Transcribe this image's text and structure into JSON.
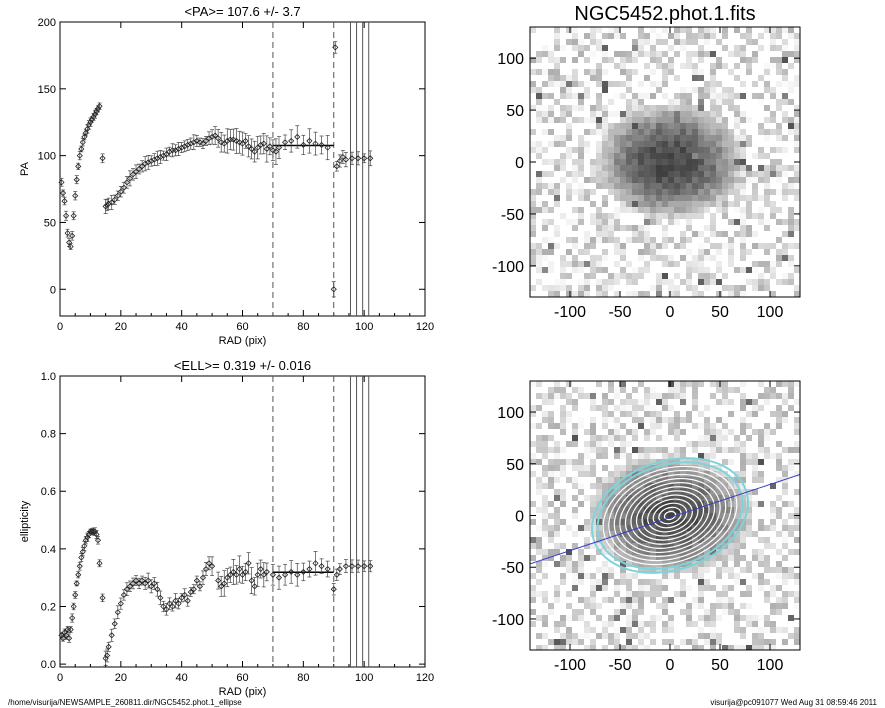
{
  "footer": {
    "path": "/home/visurija/NEWSAMPLE_260811.dir/NGC5452.phot.1_ellipse",
    "stamp": "visurija@pc091077  Wed Aug 31 08:59:46 2011"
  },
  "colors": {
    "points": "#444444",
    "axis": "#000000",
    "ellipse_cyan": "#7fd3db",
    "major_axis_line": "#3a3acc"
  },
  "chart_data": [
    {
      "type": "scatter",
      "title": "<PA>= 107.6 +/-   3.7",
      "xlabel": "RAD (pix)",
      "ylabel": "PA",
      "xlim": [
        0,
        120
      ],
      "ylim": [
        -20,
        200
      ],
      "xticks": [
        "0",
        "20",
        "40",
        "60",
        "80",
        "100",
        "120"
      ],
      "yticks": [
        "0",
        "50",
        "100",
        "150",
        "200"
      ],
      "ytick_values": [
        0,
        50,
        100,
        150,
        200
      ],
      "dashed_vlines": [
        70,
        90
      ],
      "solid_vlines": [
        95.5,
        97.5,
        99.5,
        101.5
      ],
      "mean_segment": {
        "x": [
          70,
          90
        ],
        "y": 107.6
      },
      "points": [
        [
          0.5,
          80
        ],
        [
          1,
          72
        ],
        [
          1.5,
          66
        ],
        [
          2,
          55
        ],
        [
          2.5,
          42
        ],
        [
          3,
          35
        ],
        [
          3.5,
          32
        ],
        [
          4,
          40
        ],
        [
          4.5,
          55
        ],
        [
          5,
          70
        ],
        [
          5.5,
          82
        ],
        [
          6,
          92
        ],
        [
          6.5,
          100
        ],
        [
          7,
          105
        ],
        [
          7.5,
          110
        ],
        [
          8,
          114
        ],
        [
          8.5,
          117
        ],
        [
          9,
          120
        ],
        [
          9.5,
          123
        ],
        [
          10,
          125
        ],
        [
          10.5,
          127
        ],
        [
          11,
          129
        ],
        [
          11.5,
          131
        ],
        [
          12,
          133
        ],
        [
          12.5,
          135
        ],
        [
          13,
          137
        ],
        [
          14,
          98
        ],
        [
          15,
          62
        ],
        [
          15.5,
          63
        ],
        [
          16,
          64
        ],
        [
          17,
          65
        ],
        [
          18,
          67
        ],
        [
          19,
          70
        ],
        [
          20,
          73
        ],
        [
          21,
          76
        ],
        [
          22,
          80
        ],
        [
          23,
          83
        ],
        [
          24,
          86
        ],
        [
          25,
          88
        ],
        [
          26,
          90
        ],
        [
          27,
          92
        ],
        [
          28,
          94
        ],
        [
          29,
          95
        ],
        [
          30,
          96
        ],
        [
          31,
          97
        ],
        [
          32,
          98
        ],
        [
          33,
          99
        ],
        [
          34,
          100
        ],
        [
          35,
          101
        ],
        [
          36,
          103
        ],
        [
          37,
          104
        ],
        [
          38,
          104
        ],
        [
          39,
          105
        ],
        [
          40,
          106
        ],
        [
          41,
          107
        ],
        [
          42,
          108
        ],
        [
          43,
          109
        ],
        [
          44,
          110
        ],
        [
          45,
          111
        ],
        [
          46,
          110
        ],
        [
          47,
          109
        ],
        [
          48,
          111
        ],
        [
          49,
          113
        ],
        [
          50,
          114
        ],
        [
          51,
          115
        ],
        [
          52,
          113
        ],
        [
          53,
          110
        ],
        [
          54,
          109
        ],
        [
          55,
          111
        ],
        [
          56,
          112
        ],
        [
          57,
          112
        ],
        [
          58,
          111
        ],
        [
          59,
          110
        ],
        [
          60,
          109
        ],
        [
          61,
          111
        ],
        [
          62,
          107
        ],
        [
          63,
          105
        ],
        [
          64,
          103
        ],
        [
          65,
          106
        ],
        [
          66,
          108
        ],
        [
          67,
          109
        ],
        [
          68,
          105
        ],
        [
          69,
          107
        ],
        [
          70,
          104
        ],
        [
          71,
          103
        ],
        [
          72,
          106
        ],
        [
          74,
          110
        ],
        [
          76,
          111
        ],
        [
          78,
          114
        ],
        [
          80,
          108
        ],
        [
          82,
          111
        ],
        [
          84,
          109
        ],
        [
          86,
          108
        ],
        [
          88,
          106
        ],
        [
          90,
          0
        ],
        [
          90.5,
          181
        ],
        [
          91,
          92
        ],
        [
          92,
          96
        ],
        [
          93,
          99
        ],
        [
          94,
          97
        ],
        [
          96,
          98
        ],
        [
          98,
          98
        ],
        [
          100,
          98
        ],
        [
          102,
          98
        ]
      ]
    },
    {
      "type": "scatter",
      "title": "<ELL>= 0.319 +/-  0.016",
      "xlabel": "RAD (pix)",
      "ylabel": "ellipticity",
      "xlim": [
        0,
        120
      ],
      "ylim": [
        -0.01,
        1.0
      ],
      "xticks": [
        "0",
        "20",
        "40",
        "60",
        "80",
        "100",
        "120"
      ],
      "yticks": [
        "0.0",
        "0.2",
        "0.4",
        "0.6",
        "0.8",
        "1.0"
      ],
      "ytick_values": [
        0.0,
        0.2,
        0.4,
        0.6,
        0.8,
        1.0
      ],
      "dashed_vlines": [
        70,
        90
      ],
      "solid_vlines": [
        95.5,
        97.5,
        99.5,
        101.5
      ],
      "mean_segment": {
        "x": [
          70,
          90
        ],
        "y": 0.319
      },
      "points": [
        [
          0.5,
          0.1
        ],
        [
          1,
          0.09
        ],
        [
          1.5,
          0.11
        ],
        [
          2,
          0.1
        ],
        [
          2.5,
          0.12
        ],
        [
          3,
          0.09
        ],
        [
          3.5,
          0.12
        ],
        [
          4,
          0.16
        ],
        [
          4.5,
          0.2
        ],
        [
          5,
          0.24
        ],
        [
          5.5,
          0.28
        ],
        [
          6,
          0.31
        ],
        [
          6.5,
          0.34
        ],
        [
          7,
          0.37
        ],
        [
          7.5,
          0.39
        ],
        [
          8,
          0.41
        ],
        [
          8.5,
          0.43
        ],
        [
          9,
          0.44
        ],
        [
          9.5,
          0.45
        ],
        [
          10,
          0.46
        ],
        [
          10.5,
          0.46
        ],
        [
          11,
          0.46
        ],
        [
          11.5,
          0.46
        ],
        [
          12,
          0.45
        ],
        [
          12.5,
          0.43
        ],
        [
          13,
          0.35
        ],
        [
          14,
          0.23
        ],
        [
          15,
          0.02
        ],
        [
          15.5,
          0.03
        ],
        [
          16,
          0.06
        ],
        [
          17,
          0.1
        ],
        [
          18,
          0.14
        ],
        [
          19,
          0.18
        ],
        [
          20,
          0.21
        ],
        [
          21,
          0.24
        ],
        [
          22,
          0.26
        ],
        [
          23,
          0.27
        ],
        [
          24,
          0.28
        ],
        [
          25,
          0.29
        ],
        [
          26,
          0.28
        ],
        [
          27,
          0.29
        ],
        [
          28,
          0.28
        ],
        [
          29,
          0.29
        ],
        [
          30,
          0.27
        ],
        [
          31,
          0.28
        ],
        [
          32,
          0.26
        ],
        [
          33,
          0.23
        ],
        [
          34,
          0.2
        ],
        [
          35,
          0.19
        ],
        [
          36,
          0.21
        ],
        [
          37,
          0.2
        ],
        [
          38,
          0.22
        ],
        [
          39,
          0.21
        ],
        [
          40,
          0.23
        ],
        [
          41,
          0.24
        ],
        [
          42,
          0.22
        ],
        [
          43,
          0.25
        ],
        [
          44,
          0.26
        ],
        [
          45,
          0.29
        ],
        [
          46,
          0.27
        ],
        [
          47,
          0.3
        ],
        [
          48,
          0.33
        ],
        [
          49,
          0.35
        ],
        [
          50,
          0.34
        ],
        [
          52,
          0.29
        ],
        [
          53,
          0.27
        ],
        [
          54,
          0.28
        ],
        [
          55,
          0.3
        ],
        [
          56,
          0.31
        ],
        [
          57,
          0.32
        ],
        [
          58,
          0.31
        ],
        [
          59,
          0.33
        ],
        [
          60,
          0.31
        ],
        [
          61,
          0.32
        ],
        [
          62,
          0.35
        ],
        [
          63,
          0.29
        ],
        [
          64,
          0.27
        ],
        [
          65,
          0.31
        ],
        [
          66,
          0.33
        ],
        [
          67,
          0.31
        ],
        [
          68,
          0.32
        ],
        [
          70,
          0.31
        ],
        [
          72,
          0.3
        ],
        [
          74,
          0.31
        ],
        [
          76,
          0.32
        ],
        [
          78,
          0.31
        ],
        [
          80,
          0.32
        ],
        [
          82,
          0.33
        ],
        [
          84,
          0.35
        ],
        [
          86,
          0.34
        ],
        [
          88,
          0.33
        ],
        [
          90,
          0.26
        ],
        [
          91,
          0.31
        ],
        [
          92,
          0.33
        ],
        [
          94,
          0.34
        ],
        [
          96,
          0.34
        ],
        [
          98,
          0.34
        ],
        [
          100,
          0.34
        ],
        [
          102,
          0.34
        ]
      ]
    },
    {
      "type": "heatmap",
      "title": "NGC5452.phot.1.fits",
      "xlim": [
        -140,
        130
      ],
      "ylim": [
        -130,
        130
      ],
      "xticks": [
        "-100",
        "-50",
        "0",
        "50",
        "100"
      ],
      "xtick_values": [
        -100,
        -50,
        0,
        50,
        100
      ],
      "yticks": [
        "-100",
        "-50",
        "0",
        "50",
        "100"
      ],
      "ytick_values": [
        -100,
        -50,
        0,
        50,
        100
      ],
      "galaxy": {
        "center": [
          0,
          0
        ],
        "semi_major": 65,
        "semi_minor": 45,
        "pa_deg": 107.6
      }
    },
    {
      "type": "heatmap",
      "title": "",
      "xlim": [
        -140,
        130
      ],
      "ylim": [
        -130,
        130
      ],
      "xticks": [
        "-100",
        "-50",
        "0",
        "50",
        "100"
      ],
      "xtick_values": [
        -100,
        -50,
        0,
        50,
        100
      ],
      "yticks": [
        "-100",
        "-50",
        "0",
        "50",
        "100"
      ],
      "ytick_values": [
        -100,
        -50,
        0,
        50,
        100
      ],
      "ellipse_overlay": {
        "outer_a": 80,
        "ell": 0.319,
        "pa_deg": 107.6,
        "count": 14
      },
      "major_axis_slope": 0.32
    }
  ]
}
